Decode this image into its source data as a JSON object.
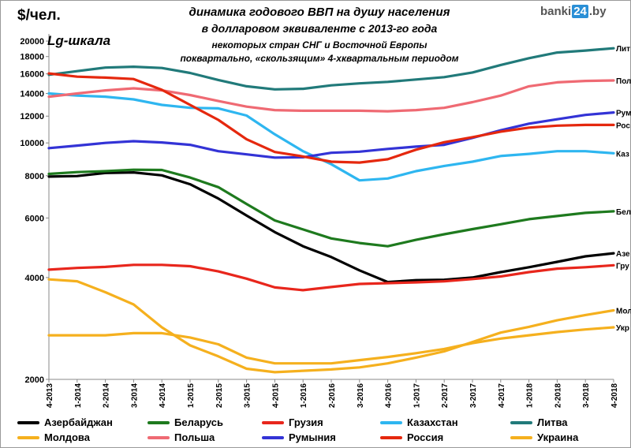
{
  "header": {
    "unit": "$/чел.",
    "title_line1": "динамика годового ВВП на душу населения",
    "title_line2": "в долларовом  эквиваленте  с 2013-го года",
    "title_line3": "некоторых  стран СНГ и Восточной Европы",
    "title_line4": "поквартально, «скользящим» 4-хквартальным периодом",
    "scale_note": "Lg-шкала",
    "brand_left": "banki",
    "brand_box": "24",
    "brand_right": ".by"
  },
  "chart_data": {
    "type": "line",
    "y_scale": "log",
    "ylim": [
      2000,
      21000
    ],
    "y_ticks": [
      2000,
      4000,
      6000,
      8000,
      10000,
      12000,
      14000,
      16000,
      18000,
      20000
    ],
    "grid": false,
    "categories": [
      "4-2013",
      "1-2014",
      "2-2014",
      "3-2014",
      "4-2014",
      "1-2015",
      "2-2015",
      "3-2015",
      "4-2015",
      "1-2016",
      "2-2016",
      "3-2016",
      "4-2016",
      "1-2017",
      "2-2017",
      "3-2017",
      "4-2017",
      "1-2018",
      "2-2018",
      "3-2018",
      "4-2018"
    ],
    "legend_position": "bottom",
    "series": [
      {
        "name": "Азербайджан",
        "short": "Азе",
        "color": "#000000",
        "values": [
          7950,
          7980,
          8150,
          8180,
          8020,
          7550,
          6850,
          6100,
          5450,
          4950,
          4600,
          4200,
          3880,
          3930,
          3940,
          4000,
          4150,
          4290,
          4450,
          4620,
          4720
        ]
      },
      {
        "name": "Беларусь",
        "short": "Бел",
        "color": "#1e7a1e",
        "values": [
          8100,
          8200,
          8250,
          8330,
          8320,
          7900,
          7400,
          6600,
          5900,
          5550,
          5220,
          5060,
          4950,
          5170,
          5370,
          5560,
          5750,
          5950,
          6080,
          6210,
          6280
        ]
      },
      {
        "name": "Грузия",
        "short": "Гру",
        "color": "#e8261c",
        "values": [
          4220,
          4270,
          4300,
          4360,
          4360,
          4320,
          4170,
          3970,
          3740,
          3670,
          3750,
          3830,
          3850,
          3870,
          3900,
          3960,
          4030,
          4150,
          4250,
          4290,
          4350
        ]
      },
      {
        "name": "Казахстан",
        "short": "Каз",
        "color": "#2eb6f0",
        "values": [
          14000,
          13800,
          13700,
          13450,
          12950,
          12700,
          12650,
          12050,
          10600,
          9450,
          8650,
          7750,
          7850,
          8250,
          8550,
          8800,
          9150,
          9280,
          9450,
          9450,
          9320
        ]
      },
      {
        "name": "Литва",
        "short": "Лит",
        "color": "#217a7a",
        "values": [
          15900,
          16300,
          16700,
          16800,
          16650,
          16100,
          15350,
          14700,
          14400,
          14450,
          14800,
          15000,
          15150,
          15400,
          15650,
          16150,
          17000,
          17800,
          18500,
          18750,
          19050
        ]
      },
      {
        "name": "Молдова",
        "short": "Мол",
        "color": "#f5b01e",
        "values": [
          3950,
          3900,
          3620,
          3330,
          2850,
          2520,
          2340,
          2150,
          2100,
          2120,
          2140,
          2170,
          2230,
          2320,
          2420,
          2580,
          2750,
          2860,
          2990,
          3100,
          3200
        ]
      },
      {
        "name": "Польша",
        "short": "Пол",
        "color": "#ef6a73",
        "values": [
          13700,
          14000,
          14300,
          14500,
          14300,
          13850,
          13300,
          12800,
          12500,
          12450,
          12450,
          12450,
          12400,
          12500,
          12700,
          13200,
          13800,
          14700,
          15100,
          15250,
          15300
        ]
      },
      {
        "name": "Румыния",
        "short": "Рум",
        "color": "#3333d6",
        "values": [
          9650,
          9820,
          10000,
          10120,
          10030,
          9870,
          9450,
          9250,
          9050,
          9070,
          9350,
          9420,
          9600,
          9750,
          9870,
          10350,
          10900,
          11400,
          11750,
          12100,
          12300
        ]
      },
      {
        "name": "Россия",
        "short": "Рос",
        "color": "#e5280e",
        "values": [
          16050,
          15700,
          15600,
          15450,
          14350,
          12950,
          11700,
          10250,
          9400,
          9120,
          8800,
          8750,
          8950,
          9550,
          10050,
          10400,
          10800,
          11100,
          11250,
          11300,
          11300
        ]
      },
      {
        "name": "Украина",
        "short": "Укр",
        "color": "#f5b01e",
        "values": [
          2700,
          2700,
          2700,
          2740,
          2740,
          2660,
          2540,
          2320,
          2230,
          2230,
          2230,
          2280,
          2330,
          2390,
          2460,
          2560,
          2640,
          2700,
          2760,
          2810,
          2850
        ]
      }
    ]
  }
}
